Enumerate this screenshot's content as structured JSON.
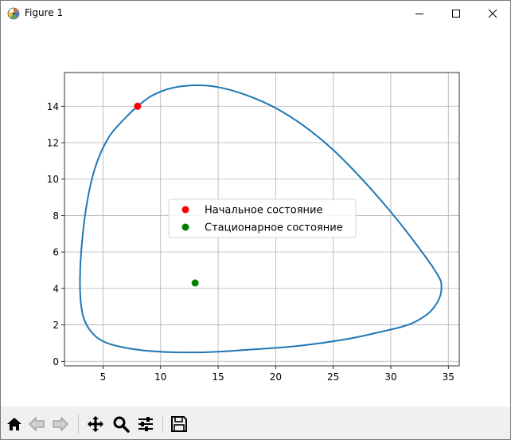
{
  "window": {
    "title": "Figure 1",
    "icon": "matplotlib-icon",
    "controls": [
      "minimize-icon",
      "maximize-icon",
      "close-icon"
    ]
  },
  "toolbar": {
    "buttons": [
      {
        "name": "home-button",
        "icon": "home-icon"
      },
      {
        "name": "back-button",
        "icon": "back-arrow-icon"
      },
      {
        "name": "forward-button",
        "icon": "forward-arrow-icon"
      },
      {
        "name": "pan-button",
        "icon": "move-icon"
      },
      {
        "name": "zoom-button",
        "icon": "zoom-icon"
      },
      {
        "name": "configure-subplots-button",
        "icon": "sliders-icon"
      },
      {
        "name": "save-button",
        "icon": "floppy-icon"
      }
    ]
  },
  "chart_data": {
    "type": "line",
    "title": "",
    "xlabel": "",
    "ylabel": "",
    "xlim": [
      1.65,
      35.95
    ],
    "ylim": [
      -0.25,
      15.85
    ],
    "xticks": [
      5,
      10,
      15,
      20,
      25,
      30,
      35
    ],
    "yticks": [
      0,
      2,
      4,
      6,
      8,
      10,
      12,
      14
    ],
    "grid": true,
    "legend_position": "center",
    "colors": {
      "orbit": "#1f77b4",
      "initial": "#ff0000",
      "steady": "#008000"
    },
    "series": [
      {
        "kind": "line",
        "x": [
          8.0,
          9.3,
          11.0,
          13.0,
          15.0,
          17.5,
          20.0,
          22.5,
          25.0,
          27.5,
          30.0,
          32.0,
          33.5,
          34.2,
          34.4,
          34.3,
          33.8,
          33.0,
          31.5,
          29.0,
          26.0,
          22.0,
          18.0,
          14.0,
          11.0,
          8.5,
          6.5,
          5.0,
          4.0,
          3.3,
          3.05,
          3.0,
          3.1,
          3.5,
          4.3,
          5.5,
          7.0,
          8.0
        ],
        "y": [
          14.0,
          14.6,
          15.0,
          15.15,
          15.05,
          14.6,
          13.9,
          12.9,
          11.6,
          10.0,
          8.2,
          6.6,
          5.3,
          4.6,
          4.2,
          3.6,
          3.0,
          2.5,
          2.0,
          1.6,
          1.2,
          0.85,
          0.65,
          0.5,
          0.5,
          0.6,
          0.8,
          1.1,
          1.6,
          2.4,
          3.4,
          4.6,
          6.0,
          8.3,
          10.6,
          12.3,
          13.4,
          14.0
        ]
      },
      {
        "kind": "point",
        "name": "Начальное состояние",
        "x": [
          8.0
        ],
        "y": [
          14.0
        ]
      },
      {
        "kind": "point",
        "name": "Стационарное состояние",
        "x": [
          13.0
        ],
        "y": [
          4.3
        ]
      }
    ]
  }
}
